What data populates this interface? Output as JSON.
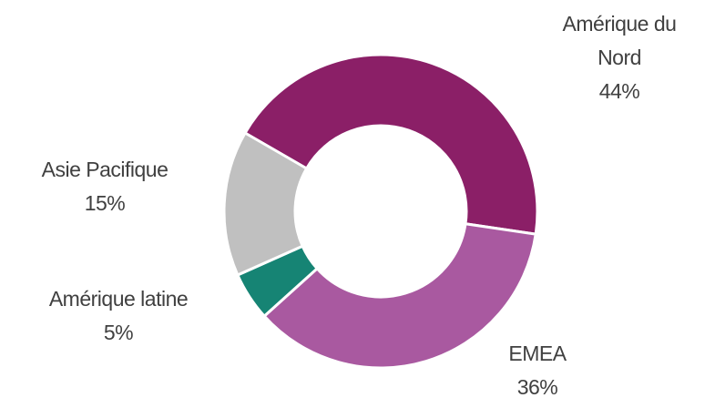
{
  "chart_data": {
    "type": "donut",
    "categories": [
      "Amérique du Nord",
      "EMEA",
      "Amérique latine",
      "Asie Pacifique"
    ],
    "values": [
      44,
      36,
      5,
      15
    ],
    "value_labels": [
      "44%",
      "36%",
      "5%",
      "15%"
    ],
    "colors": [
      "#8b1f67",
      "#a959a0",
      "#168474",
      "#c0c0c0"
    ]
  }
}
